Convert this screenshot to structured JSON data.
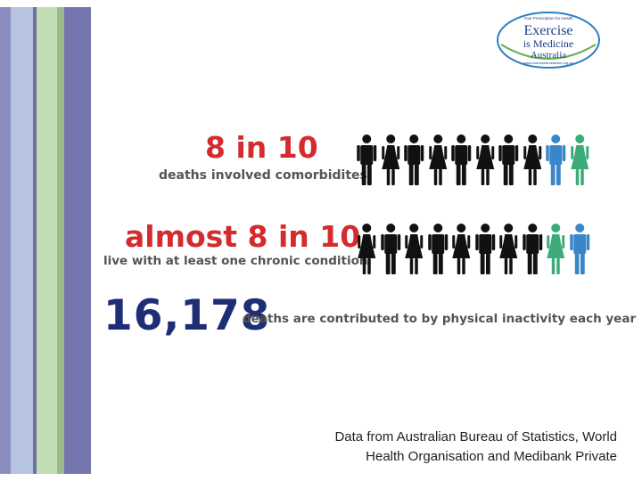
{
  "stripes": [
    {
      "name": "stripe-1",
      "color": "#8d8cbf"
    },
    {
      "name": "stripe-2",
      "color": "#b7c4df"
    },
    {
      "name": "stripe-3",
      "color": "#6f6fa8"
    },
    {
      "name": "stripe-4",
      "color": "#c2dcb4"
    },
    {
      "name": "stripe-5",
      "color": "#9aba89"
    },
    {
      "name": "stripe-6",
      "color": "#7575b0"
    }
  ],
  "logo": {
    "tagline": "Your Prescription for Health",
    "line1": "Exercise",
    "line2": "is Medicine",
    "line3": "Australia",
    "url": "www.exerciseismedicine.org.au"
  },
  "stats": [
    {
      "headline": "8 in 10",
      "caption": "deaths  involved comorbidites",
      "people": [
        "black",
        "black",
        "black",
        "black",
        "black",
        "black",
        "black",
        "black",
        "blue",
        "green"
      ]
    },
    {
      "headline": "almost 8 in 10",
      "caption": "live with at least one chronic condition",
      "people": [
        "black",
        "black",
        "black",
        "black",
        "black",
        "black",
        "black",
        "black",
        "green",
        "blue"
      ]
    }
  ],
  "inactivity": {
    "number": "16,178",
    "caption": "deaths are contributed to by physical inactivity each year"
  },
  "source": {
    "line1": "Data from Australian Bureau of Statistics, World",
    "line2": "Health Organisation and Medibank Private"
  },
  "colors": {
    "red": "#d42b2f",
    "navy": "#1f2e74",
    "black": "#111111",
    "blue": "#3a86c8",
    "green": "#3daa7a"
  },
  "icons": {
    "male": "male-figure-icon",
    "female": "female-figure-icon"
  }
}
